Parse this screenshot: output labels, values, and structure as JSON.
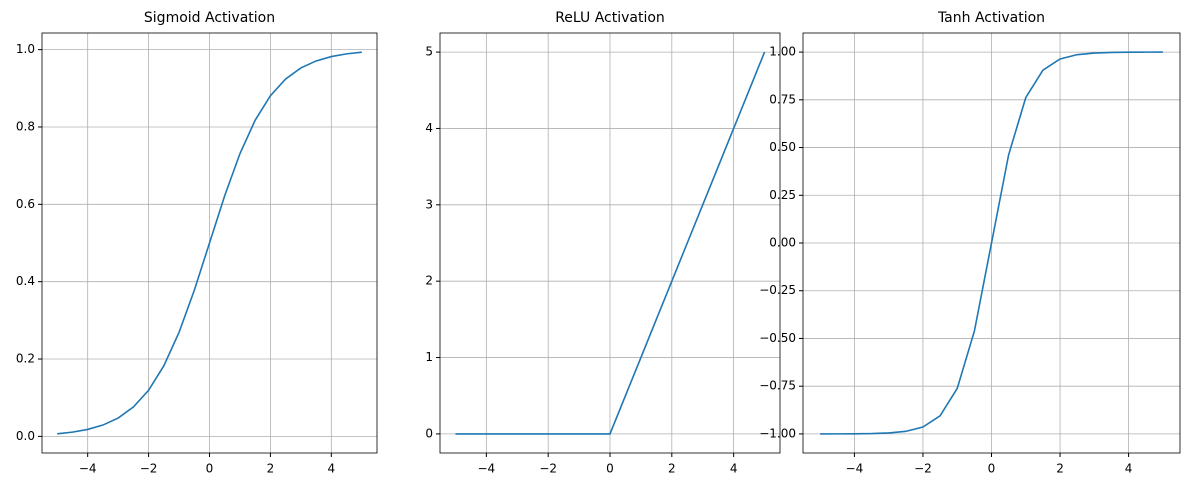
{
  "chart_data": [
    {
      "type": "line",
      "title": "Sigmoid Activation",
      "color": "#1f77b4",
      "grid": true,
      "x": [
        -5,
        -4.5,
        -4,
        -3.5,
        -3,
        -2.5,
        -2,
        -1.5,
        -1,
        -0.5,
        0,
        0.5,
        1,
        1.5,
        2,
        2.5,
        3,
        3.5,
        4,
        4.5,
        5
      ],
      "values": [
        0.0067,
        0.011,
        0.018,
        0.0293,
        0.0474,
        0.0759,
        0.1192,
        0.1824,
        0.2689,
        0.3775,
        0.5,
        0.6225,
        0.7311,
        0.8176,
        0.8808,
        0.9241,
        0.9526,
        0.9707,
        0.982,
        0.989,
        0.9933
      ],
      "xlim": [
        -5.5,
        5.5
      ],
      "ylim": [
        -0.043,
        1.043
      ],
      "xticks": [
        {
          "value": -4,
          "label": "−4"
        },
        {
          "value": -2,
          "label": "−2"
        },
        0,
        2,
        4
      ],
      "yticks": [
        {
          "value": 0,
          "label": "0.0"
        },
        0.2,
        0.4,
        0.6,
        0.8,
        {
          "value": 1,
          "label": "1.0"
        }
      ]
    },
    {
      "type": "line",
      "title": "ReLU Activation",
      "color": "#1f77b4",
      "grid": true,
      "x": [
        -5,
        -4.5,
        -4,
        -3.5,
        -3,
        -2.5,
        -2,
        -1.5,
        -1,
        -0.5,
        0,
        0.5,
        1,
        1.5,
        2,
        2.5,
        3,
        3.5,
        4,
        4.5,
        5
      ],
      "values": [
        0,
        0,
        0,
        0,
        0,
        0,
        0,
        0,
        0,
        0,
        0,
        0.5,
        1,
        1.5,
        2,
        2.5,
        3,
        3.5,
        4,
        4.5,
        5
      ],
      "xlim": [
        -5.5,
        5.5
      ],
      "ylim": [
        -0.25,
        5.25
      ],
      "xticks": [
        {
          "value": -4,
          "label": "−4"
        },
        {
          "value": -2,
          "label": "−2"
        },
        0,
        2,
        4
      ],
      "yticks": [
        0,
        1,
        2,
        3,
        4,
        5
      ]
    },
    {
      "type": "line",
      "title": "Tanh Activation",
      "color": "#1f77b4",
      "grid": true,
      "x": [
        -5,
        -4.5,
        -4,
        -3.5,
        -3,
        -2.5,
        -2,
        -1.5,
        -1,
        -0.5,
        0,
        0.5,
        1,
        1.5,
        2,
        2.5,
        3,
        3.5,
        4,
        4.5,
        5
      ],
      "values": [
        -0.9999,
        -0.9998,
        -0.9993,
        -0.9982,
        -0.9951,
        -0.9866,
        -0.964,
        -0.9051,
        -0.7616,
        -0.4621,
        0,
        0.4621,
        0.7616,
        0.9051,
        0.964,
        0.9866,
        0.9951,
        0.9982,
        0.9993,
        0.9998,
        0.9999
      ],
      "xlim": [
        -5.5,
        5.5
      ],
      "ylim": [
        -1.1,
        1.1
      ],
      "xticks": [
        {
          "value": -4,
          "label": "−4"
        },
        {
          "value": -2,
          "label": "−2"
        },
        0,
        2,
        4
      ],
      "yticks": [
        {
          "value": -1,
          "label": "−1.00"
        },
        {
          "value": -0.75,
          "label": "−0.75"
        },
        {
          "value": -0.5,
          "label": "−0.50"
        },
        {
          "value": -0.25,
          "label": "−0.25"
        },
        {
          "value": 0,
          "label": "0.00"
        },
        {
          "value": 0.25,
          "label": "0.25"
        },
        {
          "value": 0.5,
          "label": "0.50"
        },
        {
          "value": 0.75,
          "label": "0.75"
        },
        {
          "value": 1,
          "label": "1.00"
        }
      ]
    }
  ]
}
